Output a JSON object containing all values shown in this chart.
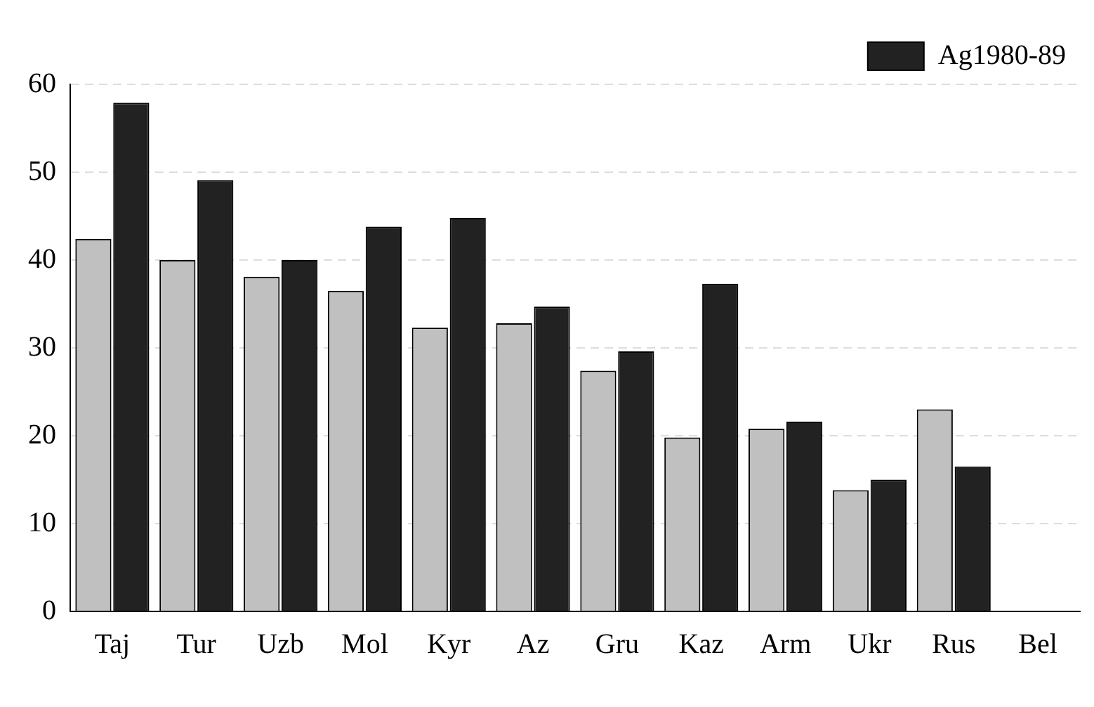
{
  "chart_data": {
    "type": "bar",
    "categories": [
      "Taj",
      "Tur",
      "Uzb",
      "Mol",
      "Kyr",
      "Az",
      "Gru",
      "Kaz",
      "Arm",
      "Ukr",
      "Rus",
      "Bel"
    ],
    "series": [
      {
        "color": "#c0c0c0",
        "values": [
          42.4,
          40,
          38.1,
          36.5,
          32.3,
          32.8,
          27.4,
          19.8,
          20.8,
          13.8,
          23.0,
          null
        ]
      },
      {
        "name": "Ag1980-89",
        "color": "#222222",
        "values": [
          57.9,
          49.1,
          40,
          43.8,
          44.8,
          34.7,
          29.6,
          37.3,
          21.6,
          15.0,
          16.5,
          null
        ]
      }
    ],
    "ylim": [
      0,
      60
    ],
    "yticks": [
      0,
      10,
      20,
      30,
      40,
      50,
      60
    ],
    "grid": "y",
    "legend": "top right"
  }
}
